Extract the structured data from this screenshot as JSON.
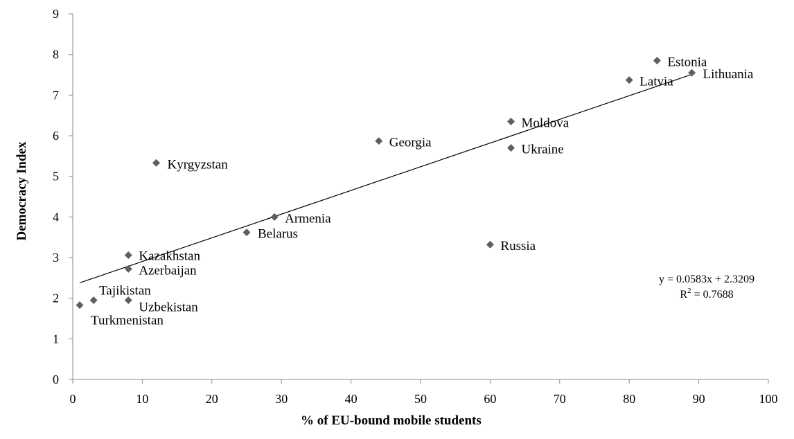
{
  "chart_data": {
    "type": "scatter",
    "title": "",
    "xlabel": "% of EU-bound mobile students",
    "ylabel": "Democracy Index",
    "xlim": [
      0,
      100
    ],
    "ylim": [
      0,
      9
    ],
    "x_ticks": [
      0,
      10,
      20,
      30,
      40,
      50,
      60,
      70,
      80,
      90,
      100
    ],
    "y_ticks": [
      0,
      1,
      2,
      3,
      4,
      5,
      6,
      7,
      8,
      9
    ],
    "grid": false,
    "marker": "diamond",
    "marker_color": "#5f5f5f",
    "points": [
      {
        "label": "Estonia",
        "x": 84,
        "y": 7.85
      },
      {
        "label": "Lithuania",
        "x": 89,
        "y": 7.55
      },
      {
        "label": "Latvia",
        "x": 80,
        "y": 7.37
      },
      {
        "label": "Moldova",
        "x": 63,
        "y": 6.35
      },
      {
        "label": "Ukraine",
        "x": 63,
        "y": 5.7
      },
      {
        "label": "Georgia",
        "x": 44,
        "y": 5.87
      },
      {
        "label": "Kyrgyzstan",
        "x": 12,
        "y": 5.33
      },
      {
        "label": "Armenia",
        "x": 29,
        "y": 4.0
      },
      {
        "label": "Belarus",
        "x": 25,
        "y": 3.62
      },
      {
        "label": "Russia",
        "x": 60,
        "y": 3.32
      },
      {
        "label": "Kazakhstan",
        "x": 8,
        "y": 3.06
      },
      {
        "label": "Azerbaijan",
        "x": 8,
        "y": 2.72
      },
      {
        "label": "Tajikistan",
        "x": 3,
        "y": 1.95
      },
      {
        "label": "Uzbekistan",
        "x": 8,
        "y": 1.95
      },
      {
        "label": "Turkmenistan",
        "x": 1,
        "y": 1.83
      }
    ],
    "trendline": {
      "type": "linear",
      "slope": 0.0583,
      "intercept": 2.3209,
      "x_range": [
        1,
        89
      ],
      "equation_text": "y = 0.0583x + 2.3209",
      "r2_prefix": "R",
      "r2_sup": "2",
      "r2_suffix": " = 0.7688"
    }
  }
}
